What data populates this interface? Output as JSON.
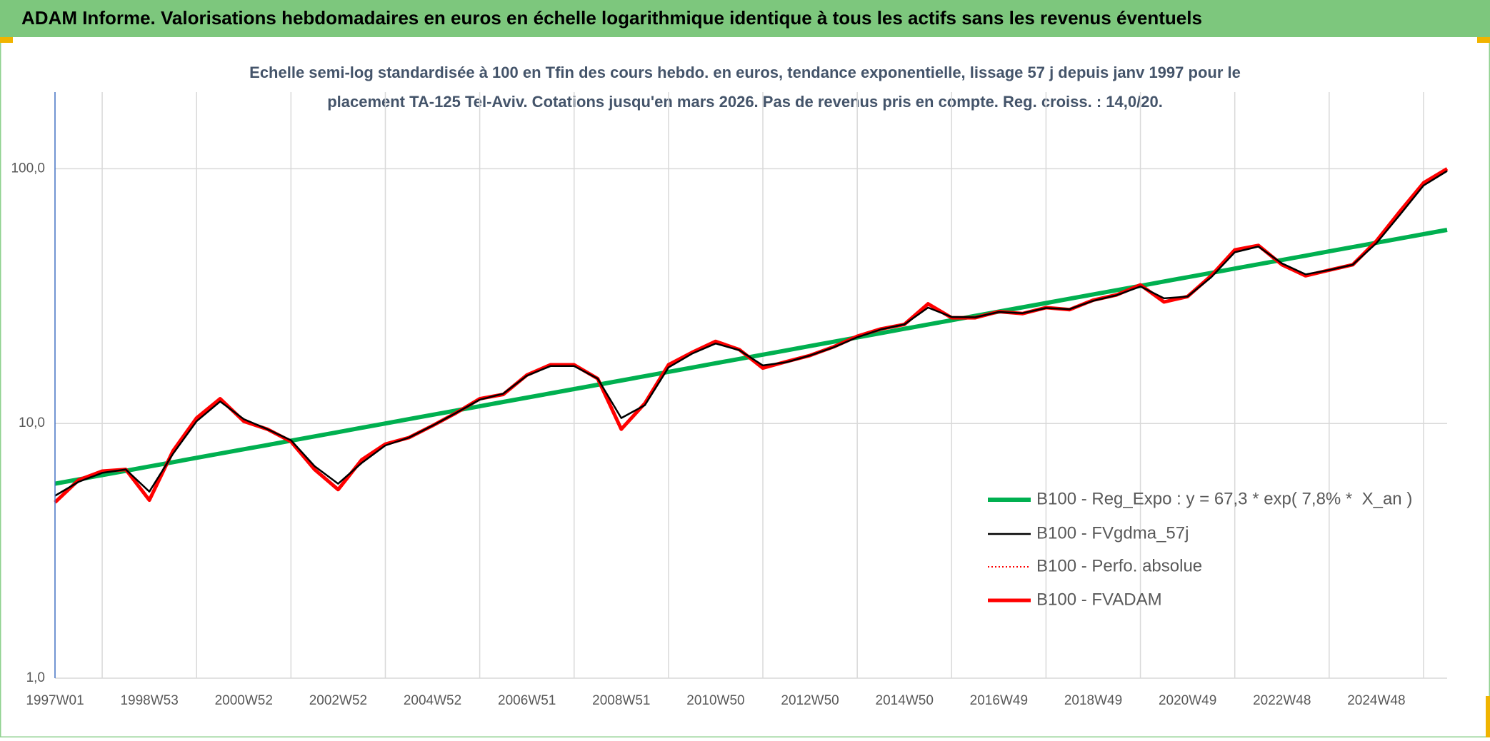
{
  "chart_data": {
    "type": "line",
    "title": "ADAM Informe. Valorisations hebdomadaires en euros en échelle logarithmique identique à tous les actifs sans les revenus éventuels",
    "subtitle": [
      "Echelle semi-log standardisée à 100 en Tfin des cours hebdo. en euros, tendance exponentielle, lissage 57 j depuis janv 1997 pour le",
      "placement TA-125 Tel-Aviv. Cotations jusqu'en mars 2026. Pas de revenus pris en compte. Reg. croiss. : 14,0/20."
    ],
    "categories": [
      "1997W01",
      null,
      null,
      null,
      "1998W53",
      null,
      null,
      null,
      "2000W52",
      null,
      null,
      null,
      "2002W52",
      null,
      null,
      null,
      "2004W52",
      null,
      null,
      null,
      "2006W51",
      null,
      null,
      null,
      "2008W51",
      null,
      null,
      null,
      "2010W50",
      null,
      null,
      null,
      "2012W50",
      null,
      null,
      null,
      "2014W50",
      null,
      null,
      null,
      "2016W49",
      null,
      null,
      null,
      "2018W49",
      null,
      null,
      null,
      "2020W49",
      null,
      null,
      null,
      "2022W48",
      null,
      null,
      null,
      "2024W48",
      null,
      null,
      null
    ],
    "log_scale": true,
    "grid": true,
    "legend": "lower right",
    "ylim": [
      1,
      200
    ],
    "yticks": [
      {
        "value": 1,
        "label": "1,0"
      },
      {
        "value": 10,
        "label": "10,0"
      },
      {
        "value": 100,
        "label": "100,0"
      }
    ],
    "series": [
      {
        "name": "B100 - Reg_Expo : y = 67,3 * exp( 7,8% *  X_an )",
        "color": "#00b050",
        "line_style": "solid",
        "values": [
          5.8,
          6.03,
          6.27,
          6.52,
          6.78,
          7.05,
          7.33,
          7.62,
          7.92,
          8.23,
          8.56,
          8.9,
          9.25,
          9.62,
          10.0,
          10.4,
          10.81,
          11.24,
          11.68,
          12.15,
          12.63,
          13.13,
          13.65,
          14.19,
          14.75,
          15.34,
          15.95,
          16.58,
          17.24,
          17.92,
          18.63,
          19.37,
          20.14,
          20.94,
          21.77,
          22.63,
          23.53,
          24.46,
          25.43,
          26.44,
          27.49,
          28.58,
          29.71,
          30.89,
          32.12,
          33.39,
          34.71,
          36.09,
          37.52,
          39.01,
          40.56,
          42.17,
          43.84,
          45.58,
          47.39,
          49.27,
          51.22,
          53.25,
          55.36,
          57.56
        ]
      },
      {
        "name": "B100 - FVgdma_57j",
        "color": "#000000",
        "line_style": "solid",
        "values": [
          5.2,
          5.9,
          6.4,
          6.6,
          5.4,
          7.6,
          10.2,
          12.2,
          10.4,
          9.5,
          8.6,
          6.8,
          5.8,
          7.0,
          8.2,
          8.8,
          9.8,
          11.0,
          12.4,
          13.1,
          15.4,
          16.8,
          16.8,
          15.0,
          10.5,
          11.8,
          16.6,
          18.8,
          20.6,
          19.4,
          16.9,
          17.4,
          18.5,
          19.9,
          21.8,
          23.4,
          24.5,
          28.5,
          26.2,
          26.1,
          27.4,
          27.1,
          28.4,
          28.1,
          30.3,
          31.9,
          34.5,
          31.0,
          31.5,
          37.5,
          47.0,
          49.5,
          42.5,
          38.5,
          40.0,
          42.0,
          51.0,
          66.0,
          86.0,
          98.0
        ]
      },
      {
        "name": "B100 - Perfo. absolue",
        "color": "#ff0000",
        "line_style": "dotted",
        "values": [
          4.9,
          6.0,
          6.5,
          6.6,
          5.0,
          7.8,
          10.5,
          12.5,
          10.2,
          9.5,
          8.5,
          6.6,
          5.5,
          7.2,
          8.3,
          8.8,
          9.8,
          11.0,
          12.5,
          13.0,
          15.5,
          17.0,
          17.0,
          15.0,
          9.5,
          12.0,
          17.0,
          19.0,
          21.0,
          19.5,
          16.5,
          17.5,
          18.5,
          20.0,
          22.0,
          23.5,
          24.5,
          29.5,
          26.0,
          26.0,
          27.5,
          27.0,
          28.5,
          28.0,
          30.5,
          32.0,
          35.0,
          30.0,
          31.5,
          38.0,
          48.0,
          50.0,
          42.0,
          38.0,
          40.0,
          42.0,
          52.0,
          68.0,
          88.0,
          100.0
        ]
      },
      {
        "name": "B100 - FVADAM",
        "color": "#ff0000",
        "line_style": "solid",
        "values": [
          4.9,
          6.0,
          6.5,
          6.6,
          5.0,
          7.8,
          10.5,
          12.5,
          10.2,
          9.5,
          8.5,
          6.6,
          5.5,
          7.2,
          8.3,
          8.8,
          9.8,
          11.0,
          12.5,
          13.0,
          15.5,
          17.0,
          17.0,
          15.0,
          9.5,
          12.0,
          17.0,
          19.0,
          21.0,
          19.5,
          16.5,
          17.5,
          18.5,
          20.0,
          22.0,
          23.5,
          24.5,
          29.5,
          26.0,
          26.0,
          27.5,
          27.0,
          28.5,
          28.0,
          30.5,
          32.0,
          35.0,
          30.0,
          31.5,
          38.0,
          48.0,
          50.0,
          42.0,
          38.0,
          40.0,
          42.0,
          52.0,
          68.0,
          88.0,
          100.0
        ]
      }
    ]
  }
}
